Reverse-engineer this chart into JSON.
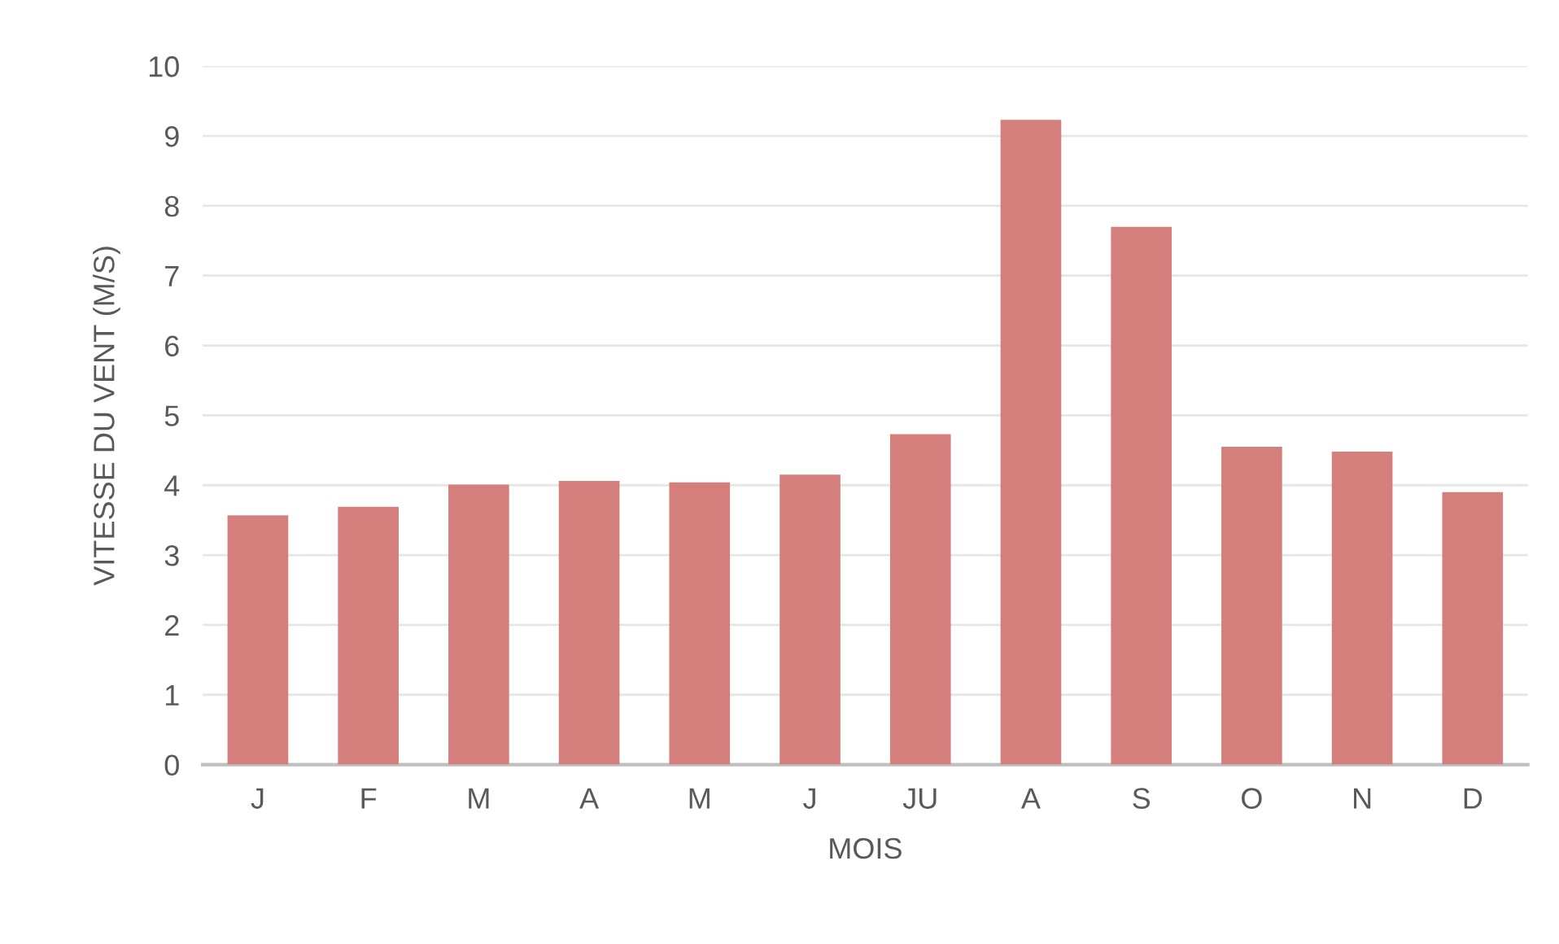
{
  "chart_data": {
    "type": "bar",
    "xlabel": "MOIS",
    "ylabel": "VITESSE DU VENT (M/S)",
    "categories": [
      "J",
      "F",
      "M",
      "A",
      "M",
      "J",
      "JU",
      "A",
      "S",
      "O",
      "N",
      "D"
    ],
    "values": [
      3.57,
      3.69,
      4.01,
      4.06,
      4.04,
      4.15,
      4.73,
      9.23,
      7.7,
      4.55,
      4.48,
      3.9
    ],
    "color": "#d47f7c",
    "ylim": [
      0,
      10
    ],
    "yticks": [
      0,
      1,
      2,
      3,
      4,
      5,
      6,
      7,
      8,
      9,
      10
    ],
    "grid": "y"
  }
}
